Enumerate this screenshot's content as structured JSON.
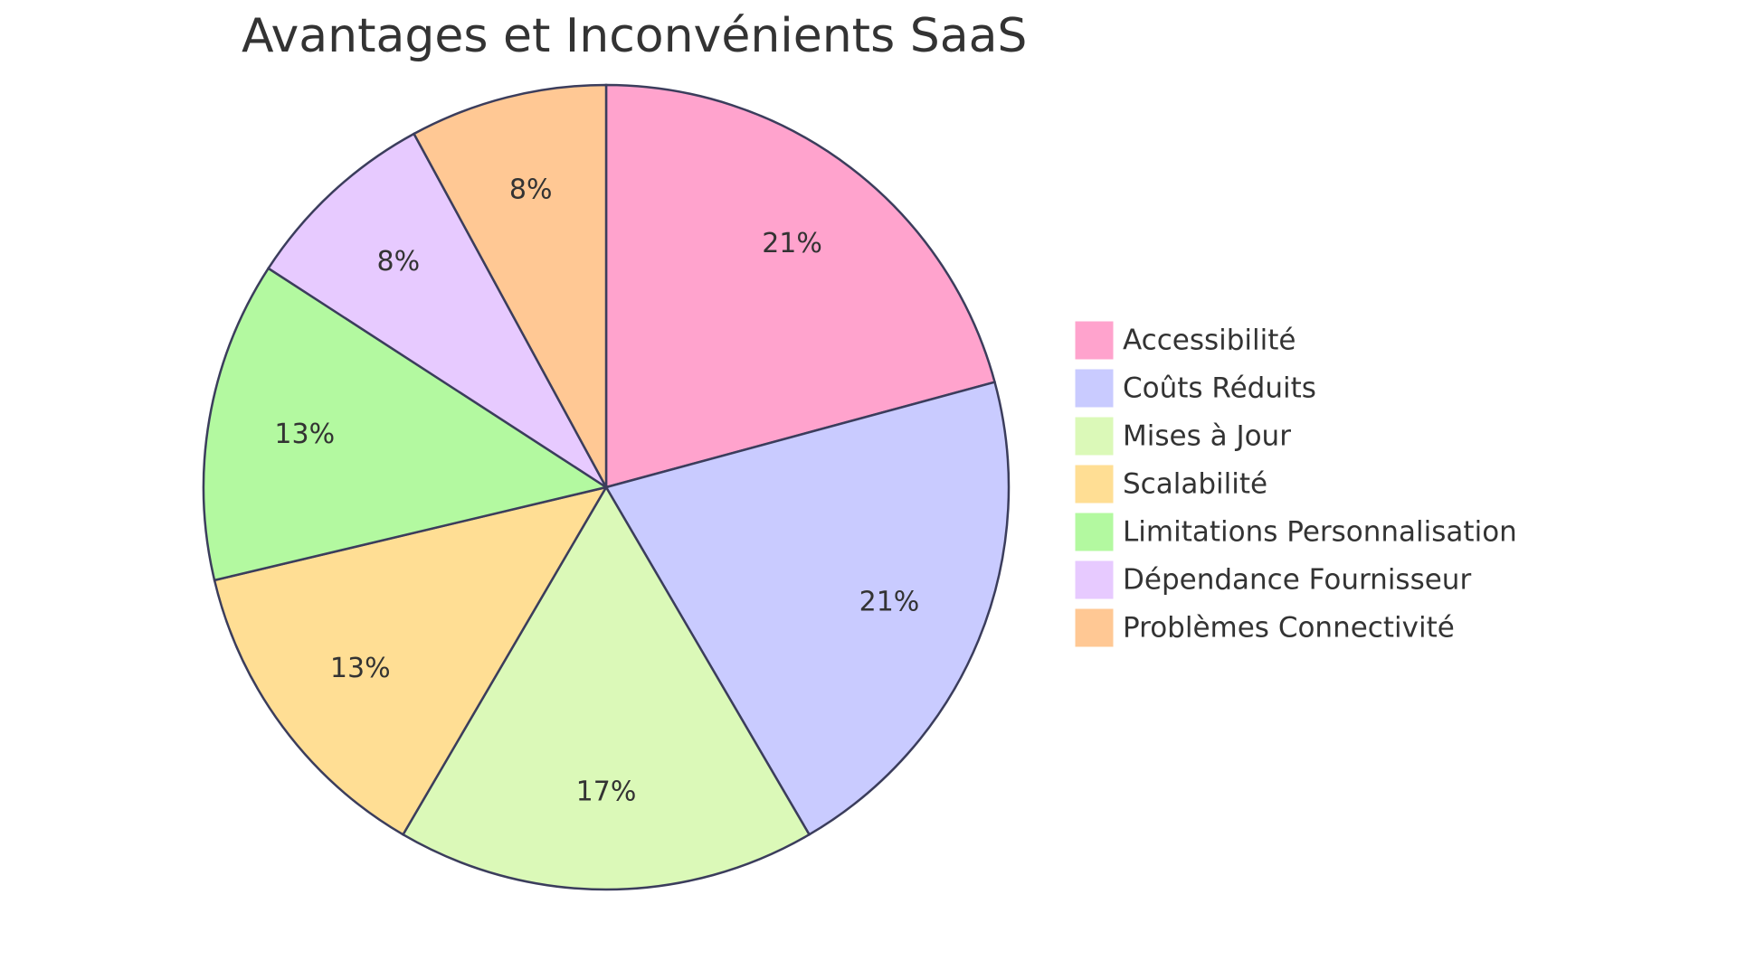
{
  "chart_data": {
    "type": "pie",
    "title": "Avantages et Inconvénients SaaS",
    "categories": [
      "Accessibilité",
      "Coûts Réduits",
      "Mises à Jour",
      "Scalabilité",
      "Limitations Personnalisation",
      "Dépendance Fournisseur",
      "Problèmes Connectivité"
    ],
    "values": [
      21,
      21,
      17,
      13,
      13,
      8,
      8
    ],
    "value_labels": [
      "21%",
      "21%",
      "17%",
      "13%",
      "13%",
      "8%",
      "8%"
    ],
    "colors": [
      "#ffa3cd",
      "#c9cbff",
      "#dbf9b8",
      "#ffde94",
      "#b3f9a0",
      "#e7caff",
      "#ffc894"
    ],
    "legend": "right"
  }
}
